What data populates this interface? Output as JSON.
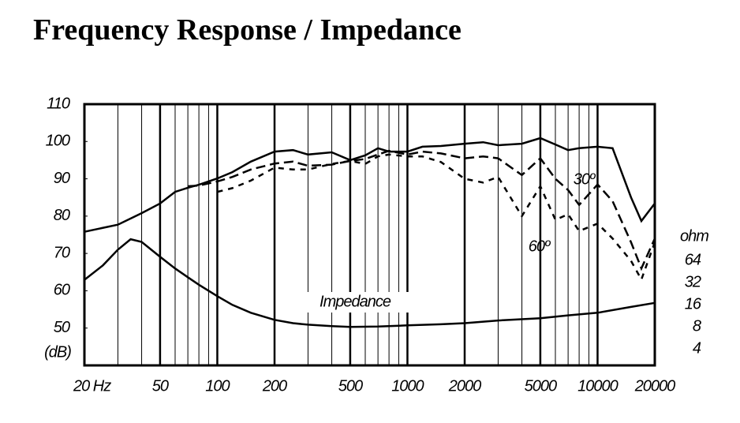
{
  "chart_data": {
    "type": "line",
    "title": "Frequency Response / Impedance",
    "ylabel": "(dB)",
    "y2label": "ohm",
    "xscale": "log",
    "xlim": [
      20,
      20000
    ],
    "xticks": [
      {
        "value": 20,
        "label": "20 Hz"
      },
      50,
      100,
      200,
      500,
      1000,
      2000,
      5000,
      10000,
      20000
    ],
    "xminor": [
      30,
      40,
      60,
      70,
      80,
      90,
      300,
      400,
      600,
      700,
      800,
      900,
      3000,
      4000,
      6000,
      7000,
      8000,
      9000
    ],
    "ylim": [
      40,
      110
    ],
    "yticks": [
      50,
      60,
      70,
      80,
      90,
      100,
      110
    ],
    "y2scale": "log",
    "y2lim": [
      2.4,
      8600
    ],
    "y2ticks": [
      4,
      8,
      16,
      32,
      64
    ],
    "grid": true,
    "series": [
      {
        "color": "#000",
        "style": "solid",
        "x": [
          20,
          30,
          40,
          50,
          60,
          70,
          80,
          100,
          120,
          150,
          200,
          250,
          300,
          400,
          500,
          600,
          700,
          800,
          1000,
          1200,
          1500,
          2000,
          2500,
          3000,
          4000,
          5000,
          6000,
          7000,
          8000,
          10000,
          12000,
          15000,
          17000,
          20000
        ],
        "values": [
          75.8,
          77.7,
          80.8,
          83.4,
          86.5,
          87.6,
          88.4,
          90.1,
          91.8,
          94.6,
          97.3,
          97.7,
          96.5,
          97.1,
          95,
          96.3,
          98.2,
          97.3,
          97.3,
          98.6,
          98.8,
          99.4,
          99.8,
          99,
          99.4,
          100.9,
          99.2,
          97.7,
          98.2,
          98.6,
          98.2,
          85,
          78.7,
          83.4
        ]
      },
      {
        "name": "30º",
        "color": "#000",
        "style": "dashed",
        "x": [
          70,
          80,
          100,
          120,
          150,
          200,
          250,
          300,
          400,
          500,
          600,
          700,
          800,
          1000,
          1200,
          1500,
          2000,
          2500,
          3000,
          4000,
          5000,
          6000,
          7000,
          8000,
          10000,
          12000,
          15000,
          17000,
          20000
        ],
        "values": [
          88,
          88.2,
          89.3,
          90.5,
          92.5,
          94.1,
          94.6,
          93.5,
          93.8,
          94.8,
          95.3,
          96.5,
          97.5,
          96.5,
          97.3,
          96.8,
          95.5,
          96,
          95.5,
          91,
          95.5,
          90,
          87,
          83,
          88.5,
          84,
          73,
          66,
          74
        ]
      },
      {
        "name": "60º",
        "color": "#000",
        "style": "dotted",
        "x": [
          100,
          120,
          150,
          200,
          250,
          300,
          400,
          500,
          600,
          700,
          800,
          1000,
          1200,
          1500,
          2000,
          2500,
          3000,
          4000,
          5000,
          6000,
          7000,
          8000,
          10000,
          12000,
          15000,
          17000,
          20000
        ],
        "values": [
          86.5,
          87.5,
          89.5,
          93,
          92.5,
          92.5,
          94,
          94.8,
          94,
          96,
          96.5,
          96,
          96,
          94.5,
          90,
          89,
          90.5,
          80,
          88,
          79,
          80.5,
          76,
          78,
          74,
          68,
          63,
          73
        ]
      },
      {
        "name": "Impedance",
        "color": "#000",
        "style": "solid",
        "axis": "y2",
        "x": [
          20,
          25,
          30,
          35,
          40,
          50,
          60,
          70,
          80,
          100,
          120,
          150,
          200,
          250,
          300,
          400,
          500,
          700,
          1000,
          1500,
          2000,
          3000,
          5000,
          7000,
          10000,
          15000,
          20000
        ],
        "values": [
          35,
          55,
          90,
          125,
          115,
          72,
          50,
          38,
          30,
          21,
          16,
          12.5,
          10,
          9,
          8.6,
          8.2,
          8,
          8.1,
          8.4,
          8.7,
          9,
          9.8,
          10.5,
          11.5,
          12.5,
          15,
          17
        ]
      }
    ]
  }
}
